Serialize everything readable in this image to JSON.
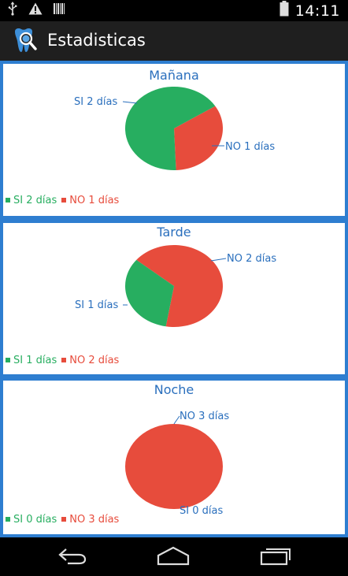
{
  "status_bar": {
    "time": "14:11",
    "icons": [
      "usb-icon",
      "warning-icon",
      "barcode-icon",
      "battery-icon"
    ]
  },
  "action_bar": {
    "title": "Estadisticas",
    "logo": "tooth-magnifier-icon"
  },
  "colors": {
    "si": "#27ae60",
    "no": "#e74c3c",
    "accent": "#2e7ed0",
    "label": "#2a6fbd"
  },
  "chart_data": [
    {
      "type": "pie",
      "title": "Mañana",
      "slices": [
        {
          "label": "SI 2 días",
          "value": 2,
          "color": "#27ae60"
        },
        {
          "label": "NO 1 días",
          "value": 1,
          "color": "#e74c3c"
        }
      ],
      "legend": [
        {
          "label": "SI 2 días",
          "color": "#27ae60"
        },
        {
          "label": "NO 1 días",
          "color": "#e74c3c"
        }
      ],
      "legend_position": "bottom-left"
    },
    {
      "type": "pie",
      "title": "Tarde",
      "slices": [
        {
          "label": "SI 1 días",
          "value": 1,
          "color": "#27ae60"
        },
        {
          "label": "NO 2 días",
          "value": 2,
          "color": "#e74c3c"
        }
      ],
      "legend": [
        {
          "label": "SI 1 días",
          "color": "#27ae60"
        },
        {
          "label": "NO 2 días",
          "color": "#e74c3c"
        }
      ],
      "legend_position": "bottom-left"
    },
    {
      "type": "pie",
      "title": "Noche",
      "slices": [
        {
          "label": "SI 0 días",
          "value": 0,
          "color": "#27ae60"
        },
        {
          "label": "NO 3 días",
          "value": 3,
          "color": "#e74c3c"
        }
      ],
      "legend": [
        {
          "label": "SI 0 días",
          "color": "#27ae60"
        },
        {
          "label": "NO 3 días",
          "color": "#e74c3c"
        }
      ],
      "legend_position": "bottom-left"
    }
  ],
  "nav_bar": {
    "buttons": [
      "back-icon",
      "home-icon",
      "recent-apps-icon"
    ]
  }
}
